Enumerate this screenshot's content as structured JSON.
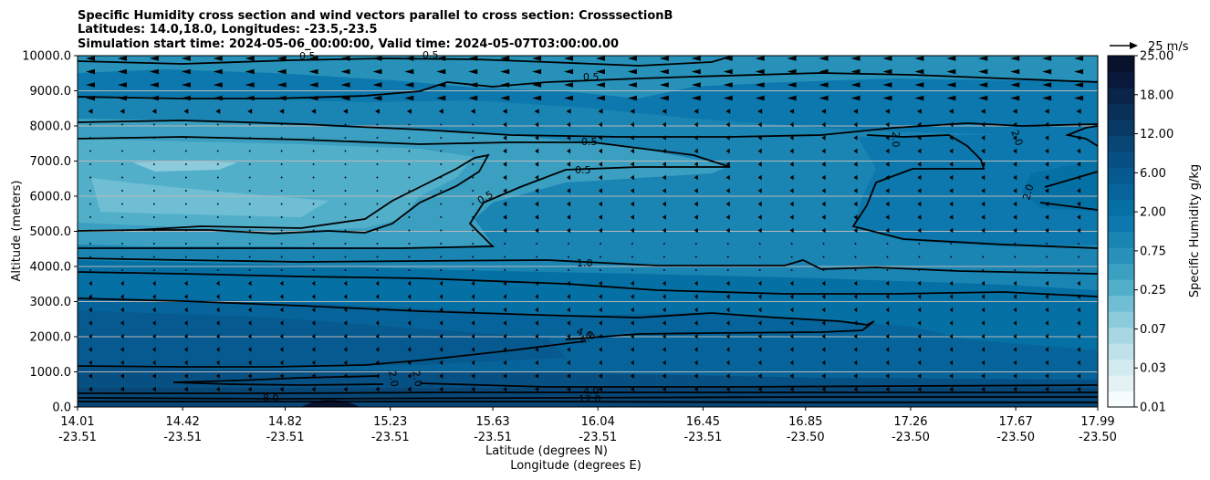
{
  "chart_data": {
    "type": "contourf",
    "title_lines": [
      "Specific Humidity cross section and wind vectors parallel to cross section: CrosssectionB",
      "Latitudes: 14.0,18.0, Longitudes: -23.5,-23.5",
      "Simulation start time: 2024-05-06_00:00:00, Valid time: 2024-05-07T03:00:00.00"
    ],
    "ylabel": "Altitude (meters)",
    "xlabel_lat": "Latitude (degrees N)",
    "xlabel_lon": "Longitude (degrees E)",
    "ylim": [
      0,
      10000
    ],
    "y_ticks": [
      "0.0",
      "1000.0",
      "2000.0",
      "3000.0",
      "4000.0",
      "5000.0",
      "6000.0",
      "7000.0",
      "8000.0",
      "9000.0",
      "10000.0"
    ],
    "x_ticks": [
      {
        "lat": "14.01",
        "lon": "-23.51"
      },
      {
        "lat": "14.42",
        "lon": "-23.51"
      },
      {
        "lat": "14.82",
        "lon": "-23.51"
      },
      {
        "lat": "15.23",
        "lon": "-23.51"
      },
      {
        "lat": "15.63",
        "lon": "-23.51"
      },
      {
        "lat": "16.04",
        "lon": "-23.51"
      },
      {
        "lat": "16.45",
        "lon": "-23.51"
      },
      {
        "lat": "16.85",
        "lon": "-23.50"
      },
      {
        "lat": "17.26",
        "lon": "-23.50"
      },
      {
        "lat": "17.67",
        "lon": "-23.50"
      },
      {
        "lat": "17.99",
        "lon": "-23.50"
      }
    ],
    "colorbar": {
      "label": "Specific Humidity g/kg",
      "ticks": [
        "0.01",
        "0.03",
        "0.07",
        "0.25",
        "0.75",
        "2.00",
        "6.00",
        "12.00",
        "18.00",
        "25.00"
      ],
      "colors": [
        "#f7fcfd",
        "#e4f2f5",
        "#d2eaf0",
        "#bfe1ea",
        "#a8d6e3",
        "#8ccbdb",
        "#6fbed3",
        "#52afca",
        "#3a9fc1",
        "#2791b9",
        "#1a84b2",
        "#0c78ad",
        "#0570a4",
        "#06649a",
        "#065a8f",
        "#075083",
        "#084675",
        "#093a66",
        "#0a2f58",
        "#0b2449",
        "#08193b",
        "#08122d"
      ]
    },
    "wind_key": "25 m/s",
    "contour_labels": [
      "0.5",
      "0.5",
      "0.5",
      "0.5",
      "0.5",
      "0.5",
      "1.0",
      "2.0",
      "2.0",
      "2.0",
      "2.0",
      "2.0",
      "4.0",
      "4.0",
      "4.0",
      "8.0",
      "12.0"
    ]
  }
}
